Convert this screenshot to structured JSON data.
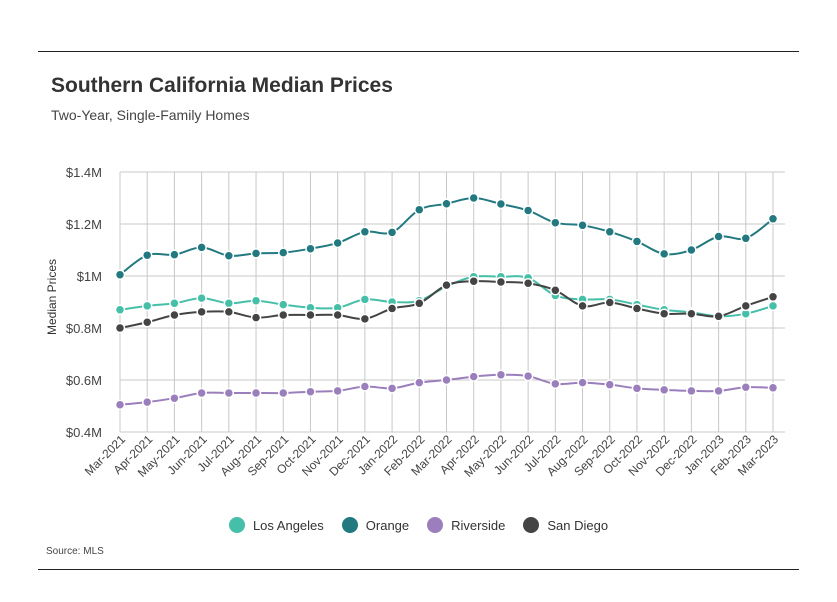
{
  "header": {
    "title": "Southern California Median Prices",
    "subtitle": "Two-Year, Single-Family Homes"
  },
  "source": "Source:  MLS",
  "colors": {
    "Los Angeles": "#45bfa8",
    "Orange": "#227a80",
    "Riverside": "#9b7fbd",
    "San Diego": "#444444"
  },
  "chart_data": {
    "type": "line",
    "title": "Southern California Median Prices",
    "subtitle": "Two-Year, Single-Family Homes",
    "xlabel": "",
    "ylabel": "Median Prices",
    "ylim": [
      0.4,
      1.4
    ],
    "yticks": [
      0.4,
      0.6,
      0.8,
      1.0,
      1.2,
      1.4
    ],
    "ytick_labels": [
      "$0.4M",
      "$0.6M",
      "$0.8M",
      "$1M",
      "$1.2M",
      "$1.4M"
    ],
    "grid": true,
    "legend_position": "bottom",
    "categories": [
      "Mar-2021",
      "Apr-2021",
      "May-2021",
      "Jun-2021",
      "Jul-2021",
      "Aug-2021",
      "Sep-2021",
      "Oct-2021",
      "Nov-2021",
      "Dec-2021",
      "Jan-2022",
      "Feb-2022",
      "Mar-2022",
      "Apr-2022",
      "May-2022",
      "Jun-2022",
      "Jul-2022",
      "Aug-2022",
      "Sep-2022",
      "Oct-2022",
      "Nov-2022",
      "Dec-2022",
      "Jan-2023",
      "Feb-2023",
      "Mar-2023"
    ],
    "series": [
      {
        "name": "Los Angeles",
        "values": [
          0.87,
          0.885,
          0.895,
          0.915,
          0.895,
          0.905,
          0.89,
          0.878,
          0.878,
          0.91,
          0.9,
          0.905,
          0.96,
          0.997,
          0.997,
          0.993,
          0.925,
          0.91,
          0.91,
          0.89,
          0.87,
          0.86,
          0.845,
          0.855,
          0.885
        ]
      },
      {
        "name": "Orange",
        "values": [
          1.005,
          1.08,
          1.082,
          1.11,
          1.078,
          1.087,
          1.09,
          1.105,
          1.127,
          1.17,
          1.168,
          1.255,
          1.278,
          1.3,
          1.277,
          1.252,
          1.205,
          1.195,
          1.17,
          1.133,
          1.085,
          1.1,
          1.152,
          1.145,
          1.22
        ]
      },
      {
        "name": "Riverside",
        "values": [
          0.505,
          0.515,
          0.53,
          0.55,
          0.55,
          0.55,
          0.55,
          0.555,
          0.558,
          0.575,
          0.568,
          0.59,
          0.6,
          0.613,
          0.62,
          0.615,
          0.585,
          0.59,
          0.582,
          0.568,
          0.562,
          0.558,
          0.558,
          0.572,
          0.57
        ]
      },
      {
        "name": "San Diego",
        "values": [
          0.8,
          0.822,
          0.85,
          0.862,
          0.862,
          0.84,
          0.85,
          0.85,
          0.85,
          0.835,
          0.875,
          0.895,
          0.965,
          0.98,
          0.977,
          0.972,
          0.945,
          0.885,
          0.898,
          0.875,
          0.855,
          0.855,
          0.845,
          0.885,
          0.92
        ]
      }
    ]
  }
}
